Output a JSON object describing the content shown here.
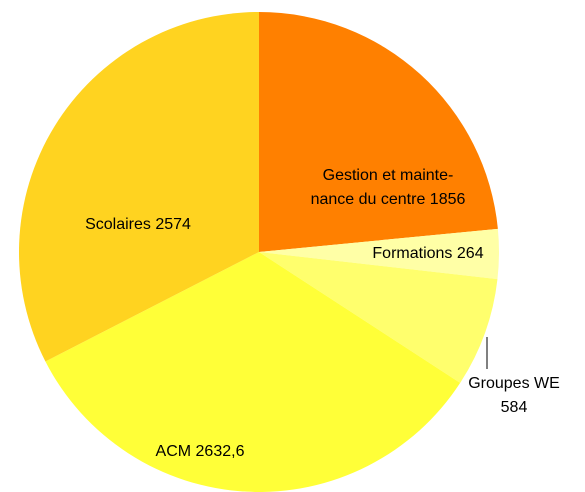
{
  "chart_data": {
    "type": "pie",
    "categories": [
      "Gestion et mainte-nance du centre",
      "Formations",
      "Groupes WE",
      "ACM",
      "Scolaires"
    ],
    "values": [
      1856,
      264,
      584,
      2632.6,
      2574
    ],
    "value_labels": [
      "1856",
      "264",
      "584",
      "2632,6",
      "2574"
    ],
    "colors": [
      "#ff8000",
      "#ffffa6",
      "#ffff6d",
      "#ffff38",
      "#ffd320"
    ]
  }
}
